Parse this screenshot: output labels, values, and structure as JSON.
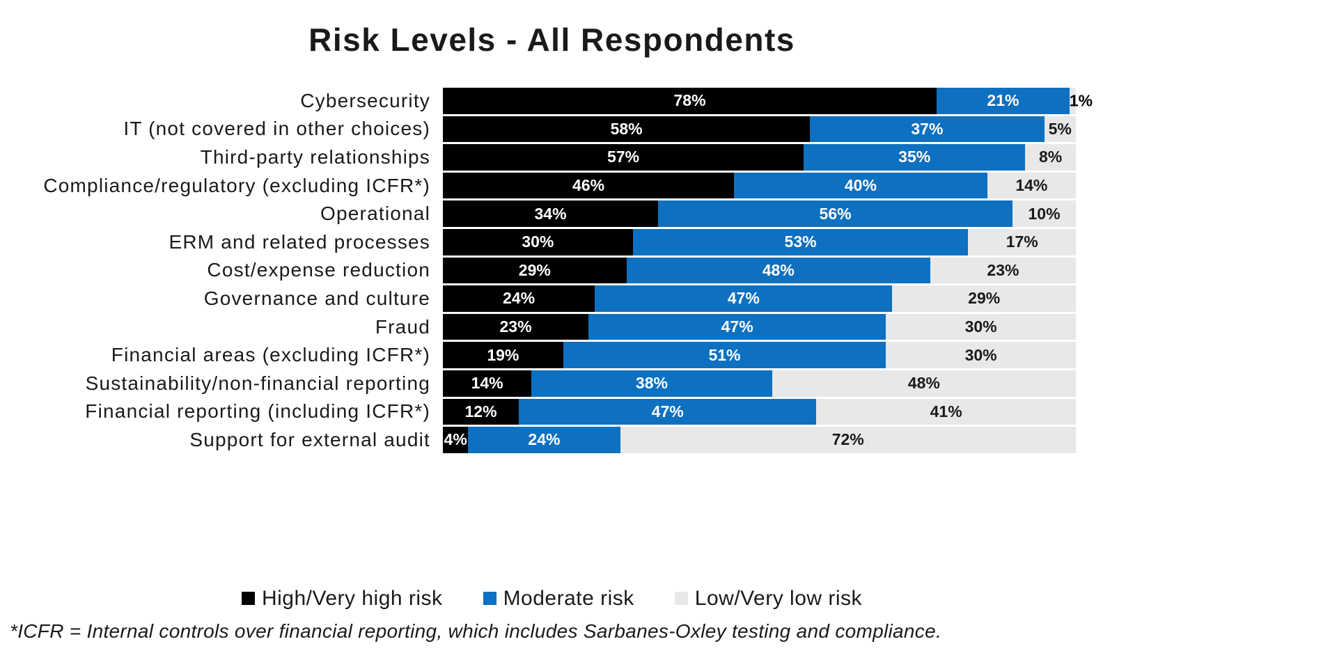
{
  "title": "Risk Levels - All Respondents",
  "footnote": "*ICFR = Internal controls over financial reporting, which includes Sarbanes-Oxley testing and compliance.",
  "colors": {
    "high_risk": "#000000",
    "moderate_risk": "#0e70c0",
    "low_risk": "#e8e8e8",
    "label_on_dark": "#ffffff",
    "label_on_light": "#1a1a1a",
    "title_text": "#1a1a1a"
  },
  "chart_data": {
    "type": "bar",
    "stacked": true,
    "orientation": "horizontal",
    "title": "Risk Levels - All Respondents",
    "xlabel": "",
    "ylabel": "",
    "xlim": [
      0,
      100
    ],
    "value_suffix": "%",
    "data_labels": true,
    "grid": false,
    "legend_position": "bottom",
    "categories": [
      "Cybersecurity",
      "IT (not covered in other choices)",
      "Third-party relationships",
      "Compliance/regulatory (excluding ICFR*)",
      "Operational",
      "ERM and related processes",
      "Cost/expense reduction",
      "Governance and culture",
      "Fraud",
      "Financial areas (excluding ICFR*)",
      "Sustainability/non-financial reporting",
      "Financial reporting (including ICFR*)",
      "Support for external audit"
    ],
    "series": [
      {
        "name": "High/Very high risk",
        "color": "#000000",
        "values": [
          78,
          58,
          57,
          46,
          34,
          30,
          29,
          24,
          23,
          19,
          14,
          12,
          4
        ]
      },
      {
        "name": "Moderate risk",
        "color": "#0e70c0",
        "values": [
          21,
          37,
          35,
          40,
          56,
          53,
          48,
          47,
          47,
          51,
          38,
          47,
          24
        ]
      },
      {
        "name": "Low/Very low risk",
        "color": "#e8e8e8",
        "values": [
          1,
          5,
          8,
          14,
          10,
          17,
          23,
          29,
          30,
          30,
          48,
          41,
          72
        ]
      }
    ]
  }
}
